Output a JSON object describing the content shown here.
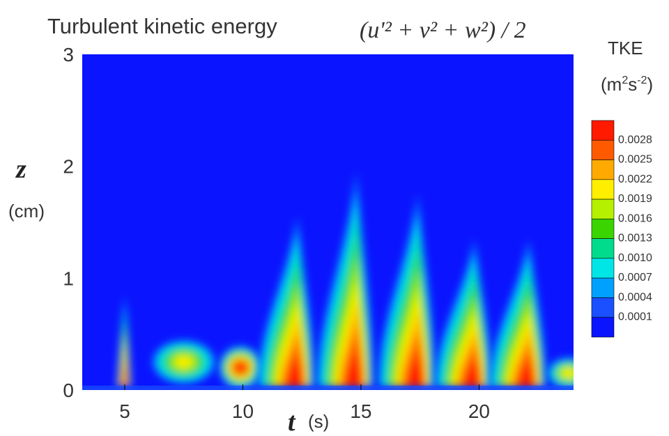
{
  "chart_data": {
    "type": "heatmap",
    "title": "Turbulent kinetic energy",
    "formula": "(u'² + v² + w²) / 2",
    "xlabel": {
      "symbol": "t",
      "unit": "(s)"
    },
    "ylabel": {
      "symbol": "z",
      "unit": "(cm)"
    },
    "xlim": [
      3.2,
      24
    ],
    "ylim": [
      0,
      3
    ],
    "xticks": [
      "5",
      "10",
      "15",
      "20"
    ],
    "yticks": [
      "0",
      "1",
      "2",
      "3"
    ],
    "colorbar": {
      "title": "TKE",
      "unit_base": "(m",
      "unit_sup1": "2",
      "unit_mid": "s",
      "unit_sup2": "-2",
      "unit_end": ")",
      "levels": [
        "0.0028",
        "0.0025",
        "0.0022",
        "0.0019",
        "0.0016",
        "0.0013",
        "0.0010",
        "0.0007",
        "0.0004",
        "0.0001"
      ],
      "colors": [
        "#ff1a00",
        "#ff5a00",
        "#ffaa00",
        "#ffee00",
        "#b4f000",
        "#3ad400",
        "#00dc8c",
        "#00e6e6",
        "#00a0ff",
        "#1a50ff",
        "#0a14ff"
      ],
      "background": "#0a14ff"
    },
    "features": [
      {
        "t": 5.0,
        "z": 0.4,
        "height": 0.75,
        "peak": 0.0028,
        "shape": "spike"
      },
      {
        "t": 7.5,
        "z": 0.25,
        "height": 0.3,
        "peak": 0.0019,
        "shape": "blob"
      },
      {
        "t": 9.9,
        "z": 0.2,
        "height": 0.3,
        "peak": 0.0028,
        "shape": "blob"
      },
      {
        "t": 12.3,
        "z": 0.2,
        "height": 1.5,
        "peak": 0.0028,
        "shape": "burst"
      },
      {
        "t": 14.8,
        "z": 0.35,
        "height": 1.9,
        "peak": 0.0028,
        "shape": "burst"
      },
      {
        "t": 17.4,
        "z": 0.25,
        "height": 1.7,
        "peak": 0.0028,
        "shape": "burst"
      },
      {
        "t": 19.8,
        "z": 0.2,
        "height": 1.3,
        "peak": 0.0028,
        "shape": "burst"
      },
      {
        "t": 22.1,
        "z": 0.3,
        "height": 1.3,
        "peak": 0.0028,
        "shape": "burst"
      },
      {
        "t": 23.8,
        "z": 0.15,
        "height": 0.2,
        "peak": 0.0019,
        "shape": "blob"
      }
    ]
  }
}
